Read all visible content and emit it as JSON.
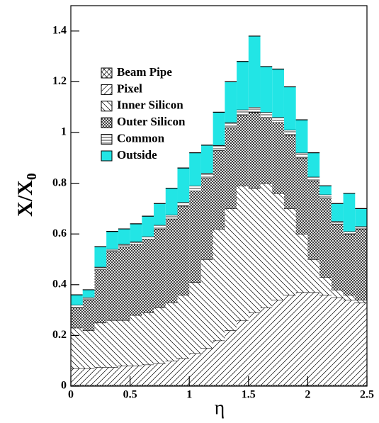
{
  "chart_data": {
    "type": "histogram",
    "stacked": true,
    "xlabel": "η",
    "ylabel": [
      "X/X",
      "0"
    ],
    "bins": [
      0,
      0.1,
      0.2,
      0.3,
      0.4,
      0.5,
      0.6,
      0.7,
      0.8,
      0.9,
      1,
      1.1,
      1.2,
      1.3,
      1.4,
      1.5,
      1.6,
      1.7,
      1.8,
      1.9,
      2,
      2.1,
      2.2,
      2.3,
      2.4,
      2.5
    ],
    "xlim": [
      0,
      2.5
    ],
    "ylim": [
      0,
      1.5
    ],
    "xticks": [
      0,
      0.5,
      1,
      1.5,
      2,
      2.5
    ],
    "yticks": [
      0,
      0.2,
      0.4,
      0.6,
      0.8,
      1,
      1.2,
      1.4
    ],
    "legend": "upper left",
    "series": [
      {
        "name": "Beam Pipe",
        "color": "#000000",
        "pattern": "cross",
        "values": [
          0.005,
          0.005,
          0.005,
          0.005,
          0.005,
          0.005,
          0.005,
          0.005,
          0.005,
          0.005,
          0.005,
          0.005,
          0.005,
          0.005,
          0.005,
          0.005,
          0.005,
          0.005,
          0.005,
          0.005,
          0.005,
          0.005,
          0.005,
          0.005,
          0.005
        ]
      },
      {
        "name": "Pixel",
        "color": "#000000",
        "pattern": "forward",
        "values": [
          0.065,
          0.065,
          0.07,
          0.07,
          0.075,
          0.075,
          0.08,
          0.085,
          0.095,
          0.105,
          0.125,
          0.145,
          0.175,
          0.215,
          0.255,
          0.285,
          0.305,
          0.335,
          0.355,
          0.365,
          0.365,
          0.355,
          0.345,
          0.335,
          0.325
        ]
      },
      {
        "name": "Inner Silicon",
        "color": "#000000",
        "pattern": "back",
        "values": [
          0.16,
          0.15,
          0.175,
          0.185,
          0.18,
          0.2,
          0.205,
          0.22,
          0.23,
          0.25,
          0.28,
          0.35,
          0.44,
          0.48,
          0.53,
          0.49,
          0.49,
          0.42,
          0.34,
          0.23,
          0.13,
          0.07,
          0.03,
          0.02,
          0.01
        ]
      },
      {
        "name": "Outer Silicon",
        "color": "#000000",
        "pattern": "crosshatch",
        "values": [
          0.08,
          0.12,
          0.21,
          0.27,
          0.29,
          0.28,
          0.29,
          0.31,
          0.33,
          0.35,
          0.36,
          0.32,
          0.31,
          0.32,
          0.28,
          0.3,
          0.26,
          0.28,
          0.29,
          0.3,
          0.31,
          0.31,
          0.26,
          0.24,
          0.28
        ]
      },
      {
        "name": "Common",
        "color": "#000000",
        "pattern": "horizontal",
        "values": [
          0.01,
          0.01,
          0.01,
          0.01,
          0.01,
          0.01,
          0.01,
          0.015,
          0.015,
          0.015,
          0.02,
          0.02,
          0.02,
          0.02,
          0.02,
          0.02,
          0.02,
          0.02,
          0.02,
          0.02,
          0.015,
          0.015,
          0.01,
          0.01,
          0.01
        ]
      },
      {
        "name": "Outside",
        "color": "#22e5e5",
        "pattern": "solid",
        "values": [
          0.04,
          0.03,
          0.08,
          0.07,
          0.06,
          0.07,
          0.08,
          0.085,
          0.105,
          0.135,
          0.13,
          0.11,
          0.13,
          0.16,
          0.19,
          0.28,
          0.18,
          0.19,
          0.17,
          0.13,
          0.095,
          0.035,
          0.07,
          0.15,
          0.07
        ]
      }
    ]
  }
}
